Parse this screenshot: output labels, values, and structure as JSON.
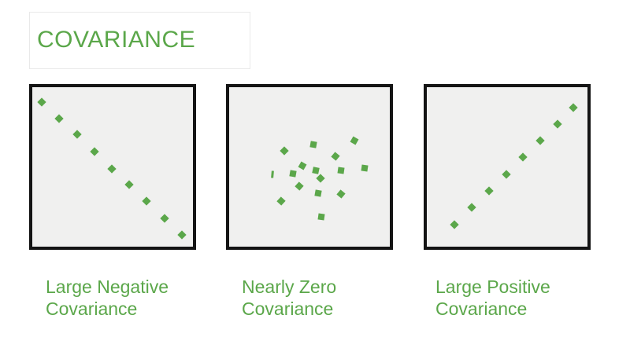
{
  "title": "COVARIANCE",
  "colors": {
    "green": "#5ba74a",
    "panel_background": "#f0f0ef",
    "panel_border": "#141414",
    "title_box_border": "#e9e9e9",
    "page_background": "#ffffff"
  },
  "panels": [
    {
      "id": "large-negative",
      "label_line1": "Large Negative",
      "label_line2": "Covariance"
    },
    {
      "id": "nearly-zero",
      "label_line1": "Nearly Zero",
      "label_line2": "Covariance"
    },
    {
      "id": "large-positive",
      "label_line1": "Large Positive",
      "label_line2": "Covariance"
    }
  ],
  "chart_data": [
    {
      "type": "scatter",
      "title": "Large Negative Covariance",
      "marker": "diamond",
      "marker_color": "#5ba74a",
      "marker_size_px": 8,
      "axes": "none",
      "x_range": [
        0,
        100
      ],
      "y_range": [
        0,
        100
      ],
      "trend": "strong negative linear",
      "points": [
        {
          "x": 5.8,
          "y": 90.6,
          "rot": 45
        },
        {
          "x": 16.9,
          "y": 80.4,
          "rot": 45
        },
        {
          "x": 27.7,
          "y": 70.4,
          "rot": 45
        },
        {
          "x": 38.8,
          "y": 59.5,
          "rot": 45
        },
        {
          "x": 49.4,
          "y": 48.9,
          "rot": 45
        },
        {
          "x": 60.5,
          "y": 38.8,
          "rot": 45
        },
        {
          "x": 71.3,
          "y": 28.6,
          "rot": 45
        },
        {
          "x": 82.4,
          "y": 17.6,
          "rot": 45
        },
        {
          "x": 93.2,
          "y": 7.4,
          "rot": 45
        }
      ]
    },
    {
      "type": "scatter",
      "title": "Nearly Zero Covariance",
      "marker": "rotated-square",
      "marker_color": "#5ba74a",
      "marker_size_px": 8,
      "axes": "none",
      "x_range": [
        0,
        100
      ],
      "y_range": [
        0,
        100
      ],
      "trend": "no correlation, central cluster",
      "points": [
        {
          "x": 27.1,
          "y": 45.3,
          "rot": 5,
          "w": 3,
          "h": 9
        },
        {
          "x": 34.3,
          "y": 60.0,
          "rot": 45
        },
        {
          "x": 52.5,
          "y": 64.0,
          "rot": 10
        },
        {
          "x": 77.7,
          "y": 66.5,
          "rot": 30
        },
        {
          "x": 66.2,
          "y": 56.7,
          "rot": 40
        },
        {
          "x": 45.6,
          "y": 50.9,
          "rot": 30
        },
        {
          "x": 39.9,
          "y": 45.8,
          "rot": 10
        },
        {
          "x": 53.9,
          "y": 47.9,
          "rot": 12
        },
        {
          "x": 57.1,
          "y": 42.9,
          "rot": 45
        },
        {
          "x": 69.5,
          "y": 47.9,
          "rot": 8
        },
        {
          "x": 84.2,
          "y": 49.4,
          "rot": 8
        },
        {
          "x": 43.5,
          "y": 37.9,
          "rot": 42
        },
        {
          "x": 55.4,
          "y": 33.6,
          "rot": 10
        },
        {
          "x": 69.4,
          "y": 32.9,
          "rot": 40
        },
        {
          "x": 32.5,
          "y": 28.4,
          "rot": 43
        },
        {
          "x": 57.4,
          "y": 18.9,
          "rot": 8
        }
      ]
    },
    {
      "type": "scatter",
      "title": "Large Positive Covariance",
      "marker": "diamond",
      "marker_color": "#5ba74a",
      "marker_size_px": 8,
      "axes": "none",
      "x_range": [
        0,
        100
      ],
      "y_range": [
        0,
        100
      ],
      "trend": "strong positive linear",
      "points": [
        {
          "x": 17.2,
          "y": 13.9,
          "rot": 45
        },
        {
          "x": 28.0,
          "y": 24.6,
          "rot": 45
        },
        {
          "x": 38.8,
          "y": 35.1,
          "rot": 45
        },
        {
          "x": 49.3,
          "y": 45.5,
          "rot": 45
        },
        {
          "x": 59.9,
          "y": 56.2,
          "rot": 45
        },
        {
          "x": 70.4,
          "y": 66.5,
          "rot": 45
        },
        {
          "x": 81.2,
          "y": 77.0,
          "rot": 45
        },
        {
          "x": 91.3,
          "y": 87.3,
          "rot": 45
        }
      ]
    }
  ]
}
